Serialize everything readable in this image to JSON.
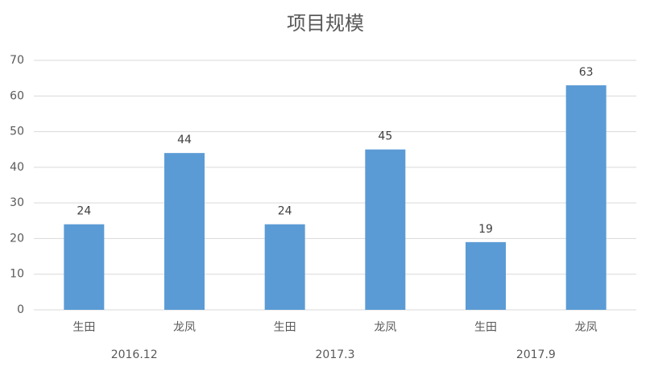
{
  "chart_data": {
    "type": "bar",
    "title": "项目规模",
    "categories": [
      "生田",
      "龙凤",
      "生田",
      "龙凤",
      "生田",
      "龙凤"
    ],
    "groups": [
      "2016.12",
      "2017.3",
      "2017.9"
    ],
    "values": [
      24,
      44,
      24,
      45,
      19,
      63
    ],
    "color": "#5b9bd5",
    "ylim": [
      0,
      70
    ],
    "yticks": [
      0,
      10,
      20,
      30,
      40,
      50,
      60,
      70
    ],
    "grid": true,
    "data_labels": true
  }
}
